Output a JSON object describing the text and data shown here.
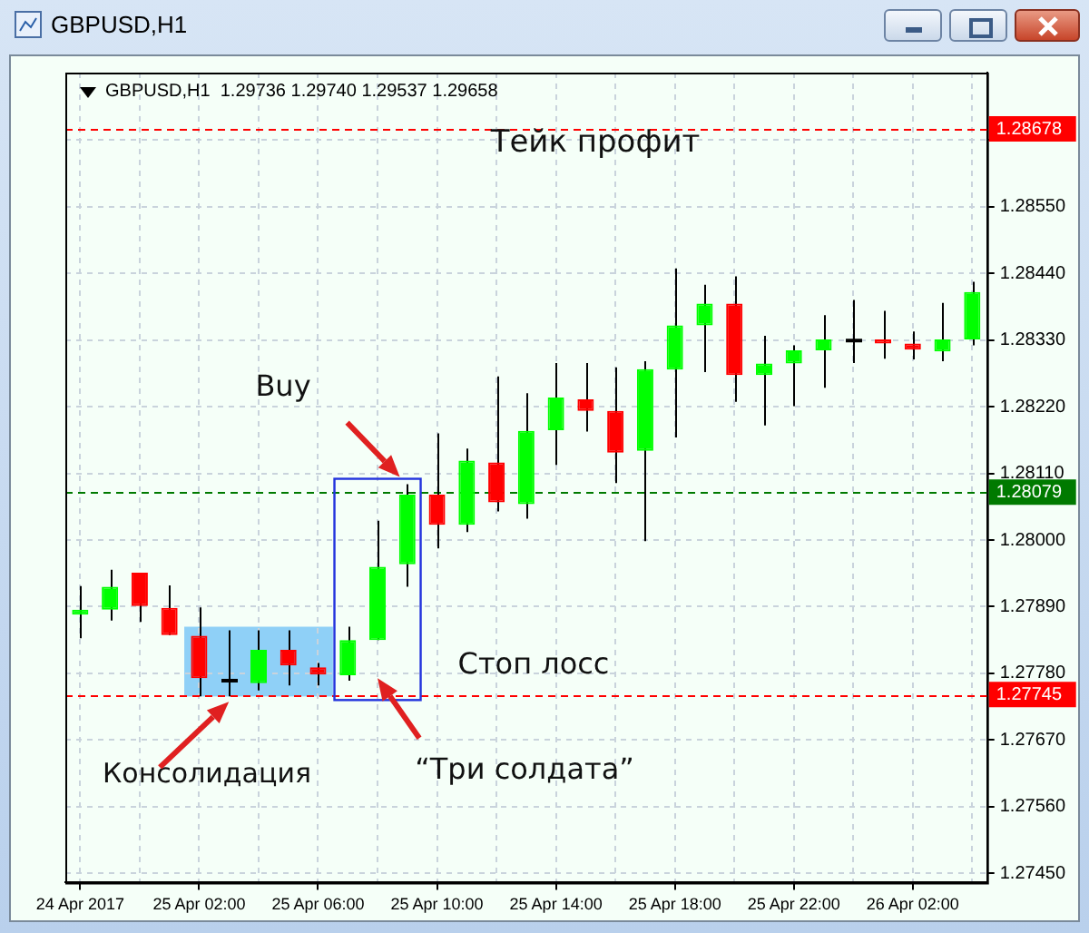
{
  "chart_data": {
    "type": "candlestick",
    "title": "GBPUSD,H1",
    "subtitle": "GBPUSD,H1  1.29736 1.29740 1.29537 1.29658",
    "categories": [
      "24 Apr 2017",
      null,
      null,
      null,
      "25 Apr 02:00",
      null,
      null,
      null,
      "25 Apr 06:00",
      null,
      null,
      null,
      "25 Apr 10:00",
      null,
      null,
      null,
      "25 Apr 14:00",
      null,
      null,
      null,
      "25 Apr 18:00",
      null,
      null,
      null,
      "25 Apr 22:00",
      null,
      null,
      null,
      "26 Apr 02:00",
      null,
      null
    ],
    "ohlc": [
      [
        1.27877,
        1.27924,
        1.27838,
        1.27885
      ],
      [
        1.27885,
        1.27951,
        1.27867,
        1.27923
      ],
      [
        1.27946,
        1.27946,
        1.27865,
        1.27891
      ],
      [
        1.27888,
        1.27925,
        1.27843,
        1.27843
      ],
      [
        1.27842,
        1.27889,
        1.27742,
        1.27772
      ],
      [
        1.27768,
        1.27851,
        1.27742,
        1.27768
      ],
      [
        1.27764,
        1.27851,
        1.27752,
        1.27819
      ],
      [
        1.27819,
        1.27851,
        1.2776,
        1.27793
      ],
      [
        1.2779,
        1.27797,
        1.2776,
        1.27778
      ],
      [
        1.27777,
        1.27857,
        1.27768,
        1.27835
      ],
      [
        1.27835,
        1.28032,
        1.27835,
        1.27956
      ],
      [
        1.2796,
        1.28092,
        1.27923,
        1.28075
      ],
      [
        1.28075,
        1.28176,
        1.27986,
        1.28025
      ],
      [
        1.28025,
        1.28151,
        1.28013,
        1.28131
      ],
      [
        1.28128,
        1.2827,
        1.28047,
        1.28062
      ],
      [
        1.28059,
        1.28242,
        1.28035,
        1.2818
      ],
      [
        1.28181,
        1.28292,
        1.28124,
        1.28235
      ],
      [
        1.28232,
        1.28292,
        1.28179,
        1.28213
      ],
      [
        1.28213,
        1.28285,
        1.28094,
        1.28144
      ],
      [
        1.28147,
        1.28295,
        1.27998,
        1.28282
      ],
      [
        1.28281,
        1.28448,
        1.28169,
        1.28354
      ],
      [
        1.28354,
        1.28421,
        1.28277,
        1.2839
      ],
      [
        1.2839,
        1.28435,
        1.28228,
        1.28272
      ],
      [
        1.28272,
        1.28337,
        1.28189,
        1.28291
      ],
      [
        1.28291,
        1.28321,
        1.28221,
        1.28313
      ],
      [
        1.28313,
        1.28371,
        1.28251,
        1.28331
      ],
      [
        1.28329,
        1.28396,
        1.28292,
        1.28329
      ],
      [
        1.28331,
        1.28378,
        1.28299,
        1.28324
      ],
      [
        1.28324,
        1.28344,
        1.28298,
        1.28314
      ],
      [
        1.28311,
        1.28391,
        1.28295,
        1.28331
      ],
      [
        1.28331,
        1.28426,
        1.28321,
        1.28409
      ]
    ],
    "colors": [
      "#00ff00",
      "#00ff00",
      "#ff0000",
      "#ff0000",
      "#ff0000",
      "#000000",
      "#00ff00",
      "#ff0000",
      "#ff0000",
      "#00ff00",
      "#00ff00",
      "#00ff00",
      "#ff0000",
      "#00ff00",
      "#ff0000",
      "#00ff00",
      "#00ff00",
      "#ff0000",
      "#ff0000",
      "#00ff00",
      "#00ff00",
      "#00ff00",
      "#ff0000",
      "#00ff00",
      "#00ff00",
      "#00ff00",
      "#000000",
      "#ff0000",
      "#ff0000",
      "#00ff00",
      "#00ff00"
    ],
    "ylim": [
      1.27435,
      1.28771
    ],
    "yticks": [
      {
        "value": 1.2745,
        "label": "1.27450"
      },
      {
        "value": 1.2756,
        "label": "1.27560"
      },
      {
        "value": 1.2767,
        "label": "1.27670"
      },
      {
        "value": 1.2778,
        "label": "1.27780"
      },
      {
        "value": 1.2789,
        "label": "1.27890"
      },
      {
        "value": 1.28,
        "label": "1.28000"
      },
      {
        "value": 1.2811,
        "label": "1.28110"
      },
      {
        "value": 1.2822,
        "label": "1.28220"
      },
      {
        "value": 1.2833,
        "label": "1.28330"
      },
      {
        "value": 1.2844,
        "label": "1.28440"
      },
      {
        "value": 1.2855,
        "label": "1.28550"
      },
      {
        "value": 1.2866,
        "label": null
      }
    ],
    "ref_lines": [
      {
        "axis": "y",
        "value": 1.28678,
        "label": "1.28678",
        "color": "#ff0000",
        "line_style": "dashed"
      },
      {
        "axis": "y",
        "value": 1.28079,
        "label": "1.28079",
        "color": "#007a00",
        "line_style": "dashed"
      },
      {
        "axis": "y",
        "value": 1.27745,
        "label": "1.27745",
        "color": "#ff0000",
        "line_style": "dashed"
      }
    ],
    "annotations": [
      "Тейк профит",
      "Buy",
      "Стоп лосс",
      "Консолидация",
      "“Три солдата”"
    ],
    "grid": true
  }
}
